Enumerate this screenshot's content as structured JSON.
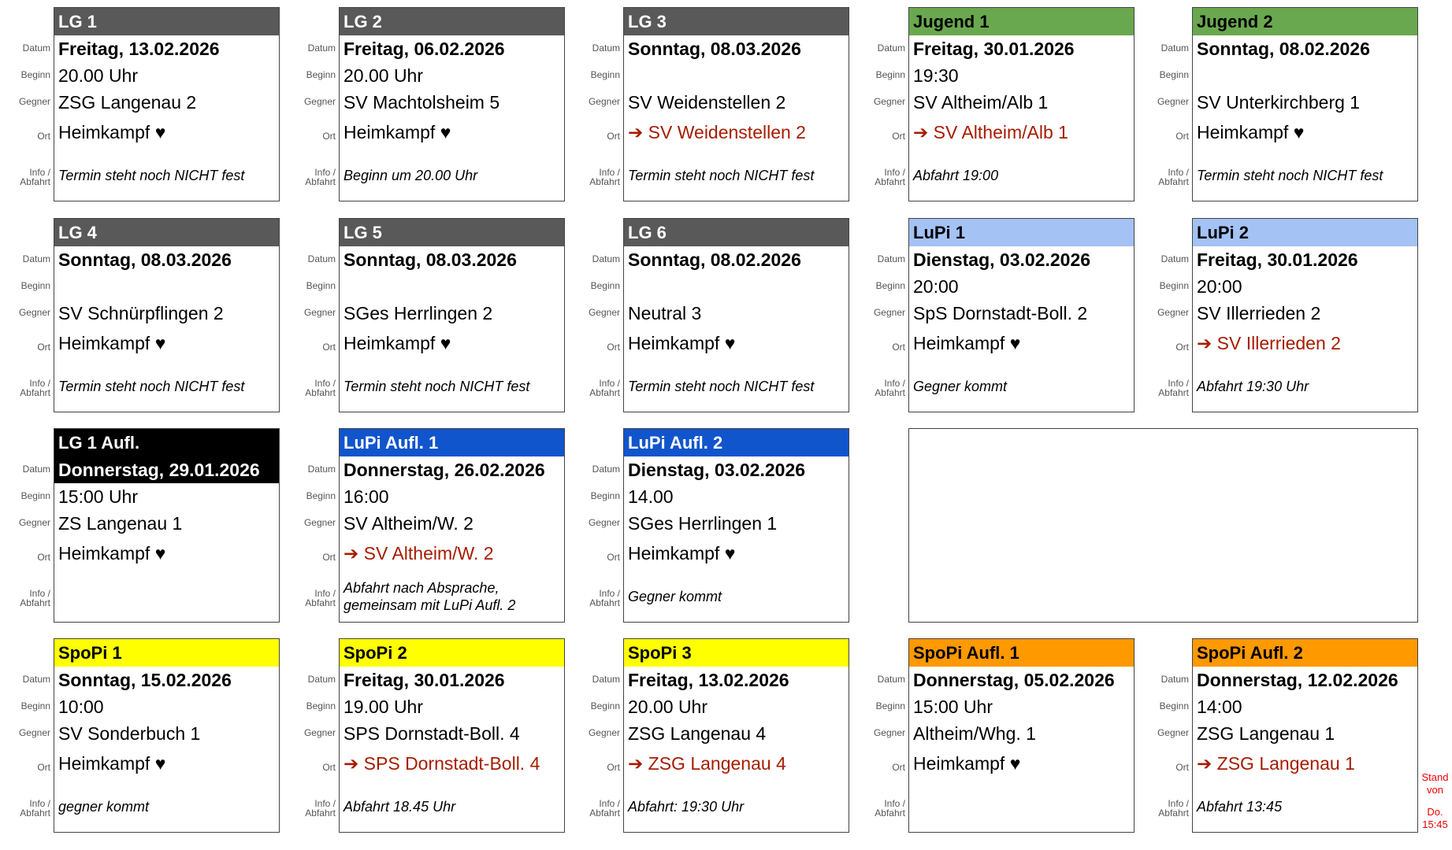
{
  "labels": {
    "date": "Datum",
    "begin": "Beginn",
    "opponent": "Gegner",
    "location": "Ort",
    "info": "Info / Abfahrt"
  },
  "cards": [
    {
      "title": "LG 1",
      "header_color": "#595959",
      "header_text_color": "#ffffff",
      "date": "Freitag, 13.02.2026",
      "begin": "20.00 Uhr",
      "opponent": "ZSG Langenau 2",
      "location": "Heimkampf ♥",
      "info": "Termin steht noch NICHT fest"
    },
    {
      "title": "LG 2",
      "header_color": "#595959",
      "header_text_color": "#ffffff",
      "date": "Freitag, 06.02.2026",
      "begin": "20.00 Uhr",
      "opponent": "SV Machtolsheim 5",
      "location": "Heimkampf ♥",
      "info": "Beginn um 20.00 Uhr"
    },
    {
      "title": "LG 3",
      "header_color": "#595959",
      "header_text_color": "#ffffff",
      "date": "Sonntag, 08.03.2026",
      "opponent": "SV Weidenstellen 2",
      "location": "➔ SV Weidenstellen 2",
      "away": true,
      "info": "Termin steht noch NICHT fest"
    },
    {
      "title": "Jugend 1",
      "header_color": "#6aa84f",
      "header_text_color": "#000000",
      "date": "Freitag, 30.01.2026",
      "begin": "19:30",
      "opponent": "SV Altheim/Alb 1",
      "location": "➔ SV Altheim/Alb 1",
      "away": true,
      "info": "Abfahrt 19:00"
    },
    {
      "title": "Jugend 2",
      "header_color": "#6aa84f",
      "header_text_color": "#000000",
      "date": "Sonntag, 08.02.2026",
      "opponent": "SV Unterkirchberg 1",
      "location": "Heimkampf ♥",
      "info": "Termin steht noch NICHT fest"
    },
    {
      "title": "LG 4",
      "header_color": "#595959",
      "header_text_color": "#ffffff",
      "date": "Sonntag, 08.03.2026",
      "opponent": "SV Schnürpflingen 2",
      "location": "Heimkampf ♥",
      "info": "Termin steht noch NICHT fest"
    },
    {
      "title": "LG 5",
      "header_color": "#595959",
      "header_text_color": "#ffffff",
      "date": "Sonntag, 08.03.2026",
      "opponent": "SGes Herrlingen 2",
      "location": "Heimkampf ♥",
      "info": "Termin steht noch NICHT fest"
    },
    {
      "title": "LG 6",
      "header_color": "#595959",
      "header_text_color": "#ffffff",
      "date": "Sonntag, 08.02.2026",
      "opponent": "Neutral 3",
      "location": "Heimkampf ♥",
      "info": "Termin steht noch NICHT fest"
    },
    {
      "title": "LuPi 1",
      "header_color": "#a4c2f4",
      "header_text_color": "#000000",
      "date": "Dienstag, 03.02.2026",
      "begin": "20:00",
      "opponent": "SpS Dornstadt-Boll. 2",
      "location": "Heimkampf ♥",
      "info": "Gegner kommt"
    },
    {
      "title": "LuPi 2",
      "header_color": "#a4c2f4",
      "header_text_color": "#000000",
      "date": "Freitag, 30.01.2026",
      "begin": "20:00",
      "opponent": "SV Illerrieden 2",
      "location": "➔ SV Illerrieden 2",
      "away": true,
      "info": "Abfahrt 19:30 Uhr"
    },
    {
      "title": "LG 1 Aufl.",
      "header_color": "#000000",
      "header_text_color": "#ffffff",
      "date_color": "#000000",
      "date_text_color": "#ffffff",
      "date": "Donnerstag, 29.01.2026",
      "begin": "15:00 Uhr",
      "opponent": "ZS Langenau 1",
      "location": "Heimkampf ♥"
    },
    {
      "title": "LuPi Aufl. 1",
      "header_color": "#1155cc",
      "header_text_color": "#ffffff",
      "date": "Donnerstag, 26.02.2026",
      "begin": "16:00",
      "opponent": "SV Altheim/W. 2",
      "location": "➔ SV Altheim/W. 2",
      "away": true,
      "info": "Abfahrt nach Absprache, gemeinsam mit LuPi Aufl. 2"
    },
    {
      "title": "LuPi Aufl. 2",
      "header_color": "#1155cc",
      "header_text_color": "#ffffff",
      "date": "Dienstag, 03.02.2026",
      "begin": "14.00",
      "opponent": "SGes Herrlingen 1",
      "location": "Heimkampf ♥",
      "info": "Gegner kommt"
    },
    {
      "title": "SpoPi 1",
      "header_color": "#ffff00",
      "header_text_color": "#000000",
      "date": "Sonntag, 15.02.2026",
      "begin": "10:00",
      "opponent": "SV Sonderbuch 1",
      "location": "Heimkampf ♥",
      "info": "gegner kommt"
    },
    {
      "title": "SpoPi 2",
      "header_color": "#ffff00",
      "header_text_color": "#000000",
      "date": "Freitag, 30.01.2026",
      "begin": "19.00 Uhr",
      "opponent": "SPS Dornstadt-Boll. 4",
      "location": "➔ SPS Dornstadt-Boll. 4",
      "away": true,
      "info": "Abfahrt 18.45 Uhr"
    },
    {
      "title": "SpoPi 3",
      "header_color": "#ffff00",
      "header_text_color": "#000000",
      "date": "Freitag, 13.02.2026",
      "begin": "20.00 Uhr",
      "opponent": "ZSG Langenau 4",
      "location": "➔ ZSG Langenau 4",
      "away": true,
      "info": "Abfahrt: 19:30 Uhr"
    },
    {
      "title": "SpoPi Aufl. 1",
      "header_color": "#ff9900",
      "header_text_color": "#000000",
      "date": "Donnerstag, 05.02.2026",
      "begin": "15:00 Uhr",
      "opponent": "Altheim/Whg. 1",
      "location": "Heimkampf ♥"
    },
    {
      "title": "SpoPi Aufl. 2",
      "header_color": "#ff9900",
      "header_text_color": "#000000",
      "date": "Donnerstag, 12.02.2026",
      "begin": "14:00",
      "opponent": "ZSG Langenau 1",
      "location": "➔ ZSG Langenau 1",
      "away": true,
      "info": "Abfahrt 13:45"
    }
  ],
  "stand": "Stand von",
  "stand_time": "Do. 15:45"
}
